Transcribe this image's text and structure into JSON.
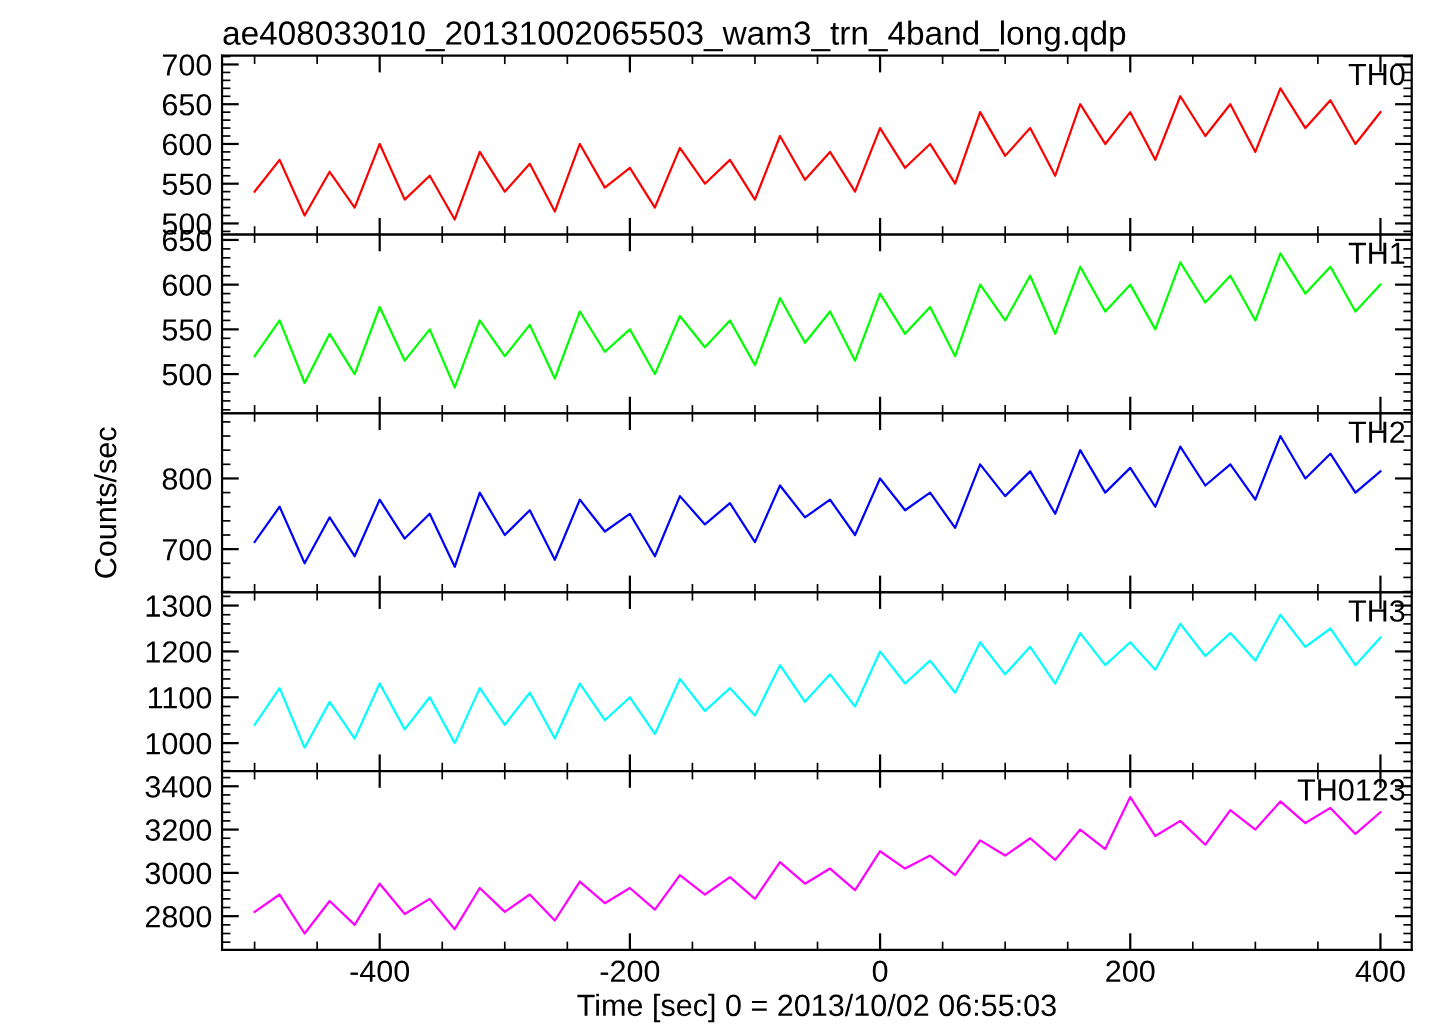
{
  "chart_data": [
    {
      "type": "line",
      "title": "ae408033010_20131002065503_wam3_trn_4band_long.qdp",
      "tick_labels": "y",
      "xlim": [
        -526,
        425
      ],
      "xticks": [
        -400,
        -200,
        0,
        200,
        400
      ],
      "ylim": [
        486,
        711
      ],
      "yticks": [
        500,
        550,
        600,
        650,
        700
      ],
      "x": [
        -500,
        -480,
        -460,
        -440,
        -420,
        -400,
        -380,
        -360,
        -340,
        -320,
        -300,
        -280,
        -260,
        -240,
        -220,
        -200,
        -180,
        -160,
        -140,
        -120,
        -100,
        -80,
        -60,
        -40,
        -20,
        0,
        20,
        40,
        60,
        80,
        100,
        120,
        140,
        160,
        180,
        200,
        220,
        240,
        260,
        280,
        300,
        320,
        340,
        360,
        380,
        400
      ],
      "series": [
        {
          "name": "TH0",
          "color": "#ff0000",
          "values": [
            540,
            580,
            510,
            565,
            520,
            600,
            530,
            560,
            505,
            590,
            540,
            575,
            515,
            600,
            545,
            570,
            520,
            595,
            550,
            580,
            530,
            610,
            555,
            590,
            540,
            620,
            570,
            600,
            550,
            640,
            585,
            620,
            560,
            650,
            600,
            640,
            580,
            660,
            610,
            650,
            590,
            670,
            620,
            655,
            600,
            640
          ]
        }
      ]
    },
    {
      "type": "line",
      "tick_labels": "y",
      "xlim": [
        -526,
        425
      ],
      "xticks": [
        -400,
        -200,
        0,
        200,
        400
      ],
      "ylim": [
        456,
        656
      ],
      "yticks": [
        500,
        550,
        600,
        650
      ],
      "x": [
        -500,
        -480,
        -460,
        -440,
        -420,
        -400,
        -380,
        -360,
        -340,
        -320,
        -300,
        -280,
        -260,
        -240,
        -220,
        -200,
        -180,
        -160,
        -140,
        -120,
        -100,
        -80,
        -60,
        -40,
        -20,
        0,
        20,
        40,
        60,
        80,
        100,
        120,
        140,
        160,
        180,
        200,
        220,
        240,
        260,
        280,
        300,
        320,
        340,
        360,
        380,
        400
      ],
      "series": [
        {
          "name": "TH1",
          "color": "#00ff00",
          "values": [
            520,
            560,
            490,
            545,
            500,
            575,
            515,
            550,
            485,
            560,
            520,
            555,
            495,
            570,
            525,
            550,
            500,
            565,
            530,
            560,
            510,
            585,
            535,
            570,
            515,
            590,
            545,
            575,
            520,
            600,
            560,
            610,
            545,
            620,
            570,
            600,
            550,
            625,
            580,
            610,
            560,
            635,
            590,
            620,
            570,
            600
          ]
        }
      ]
    },
    {
      "type": "line",
      "ylabel": "Counts/sec",
      "tick_labels": "y",
      "xlim": [
        -526,
        425
      ],
      "xticks": [
        -400,
        -200,
        0,
        200,
        400
      ],
      "ylim": [
        639,
        892
      ],
      "yticks": [
        700,
        800
      ],
      "x": [
        -500,
        -480,
        -460,
        -440,
        -420,
        -400,
        -380,
        -360,
        -340,
        -320,
        -300,
        -280,
        -260,
        -240,
        -220,
        -200,
        -180,
        -160,
        -140,
        -120,
        -100,
        -80,
        -60,
        -40,
        -20,
        0,
        20,
        40,
        60,
        80,
        100,
        120,
        140,
        160,
        180,
        200,
        220,
        240,
        260,
        280,
        300,
        320,
        340,
        360,
        380,
        400
      ],
      "series": [
        {
          "name": "TH2",
          "color": "#0000ff",
          "values": [
            710,
            760,
            680,
            745,
            690,
            770,
            715,
            750,
            675,
            780,
            720,
            755,
            685,
            770,
            725,
            750,
            690,
            775,
            735,
            765,
            710,
            790,
            745,
            770,
            720,
            800,
            755,
            780,
            730,
            820,
            775,
            810,
            750,
            840,
            780,
            815,
            760,
            845,
            790,
            820,
            770,
            860,
            800,
            835,
            780,
            810
          ]
        }
      ]
    },
    {
      "type": "line",
      "tick_labels": "y",
      "xlim": [
        -526,
        425
      ],
      "xticks": [
        -400,
        -200,
        0,
        200,
        400
      ],
      "ylim": [
        939,
        1329
      ],
      "yticks": [
        1000,
        1100,
        1200,
        1300
      ],
      "x": [
        -500,
        -480,
        -460,
        -440,
        -420,
        -400,
        -380,
        -360,
        -340,
        -320,
        -300,
        -280,
        -260,
        -240,
        -220,
        -200,
        -180,
        -160,
        -140,
        -120,
        -100,
        -80,
        -60,
        -40,
        -20,
        0,
        20,
        40,
        60,
        80,
        100,
        120,
        140,
        160,
        180,
        200,
        220,
        240,
        260,
        280,
        300,
        320,
        340,
        360,
        380,
        400
      ],
      "series": [
        {
          "name": "TH3",
          "color": "#00ffff",
          "values": [
            1040,
            1120,
            990,
            1090,
            1010,
            1130,
            1030,
            1100,
            1000,
            1120,
            1040,
            1110,
            1010,
            1130,
            1050,
            1100,
            1020,
            1140,
            1070,
            1120,
            1060,
            1170,
            1090,
            1150,
            1080,
            1200,
            1130,
            1180,
            1110,
            1220,
            1150,
            1210,
            1130,
            1240,
            1170,
            1220,
            1160,
            1260,
            1190,
            1240,
            1180,
            1280,
            1210,
            1250,
            1170,
            1230
          ]
        }
      ]
    },
    {
      "type": "line",
      "xlabel": "Time [sec] 0 = 2013/10/02 06:55:03",
      "xlim": [
        -526,
        425
      ],
      "xticks": [
        -400,
        -200,
        0,
        200,
        400
      ],
      "ylim": [
        2644,
        3470
      ],
      "yticks": [
        2800,
        3000,
        3200,
        3400
      ],
      "x": [
        -500,
        -480,
        -460,
        -440,
        -420,
        -400,
        -380,
        -360,
        -340,
        -320,
        -300,
        -280,
        -260,
        -240,
        -220,
        -200,
        -180,
        -160,
        -140,
        -120,
        -100,
        -80,
        -60,
        -40,
        -20,
        0,
        20,
        40,
        60,
        80,
        100,
        120,
        140,
        160,
        180,
        200,
        220,
        240,
        260,
        280,
        300,
        320,
        340,
        360,
        380,
        400
      ],
      "series": [
        {
          "name": "TH0123",
          "color": "#ff00ff",
          "values": [
            2820,
            2900,
            2720,
            2870,
            2760,
            2950,
            2810,
            2880,
            2740,
            2930,
            2820,
            2900,
            2780,
            2960,
            2860,
            2930,
            2830,
            2990,
            2900,
            2980,
            2880,
            3050,
            2950,
            3020,
            2920,
            3100,
            3020,
            3080,
            2990,
            3150,
            3080,
            3160,
            3060,
            3200,
            3110,
            3350,
            3170,
            3240,
            3130,
            3290,
            3200,
            3330,
            3230,
            3300,
            3180,
            3280
          ]
        }
      ]
    }
  ]
}
